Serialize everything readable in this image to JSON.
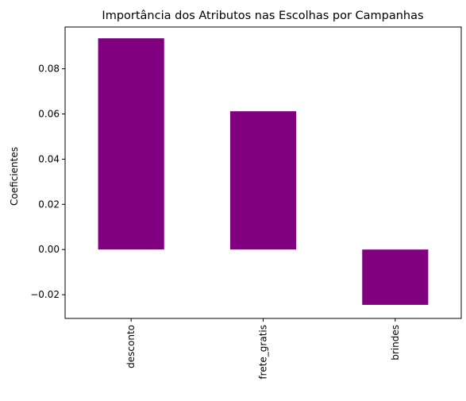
{
  "chart_data": {
    "type": "bar",
    "title": "Importância dos Atributos nas Escolhas por Campanhas",
    "xlabel": "",
    "ylabel": "Coeficientes",
    "categories": [
      "desconto",
      "frete_gratis",
      "brindes"
    ],
    "values": [
      0.0935,
      0.0612,
      -0.0245
    ],
    "ylim": [
      -0.0305,
      0.0985
    ],
    "yticks": [
      -0.02,
      0.0,
      0.02,
      0.04,
      0.06,
      0.08
    ],
    "ytick_labels": [
      "−0.02",
      "0.00",
      "0.02",
      "0.04",
      "0.06",
      "0.08"
    ],
    "grid": false,
    "legend": "none",
    "bar_color": "#800080"
  }
}
